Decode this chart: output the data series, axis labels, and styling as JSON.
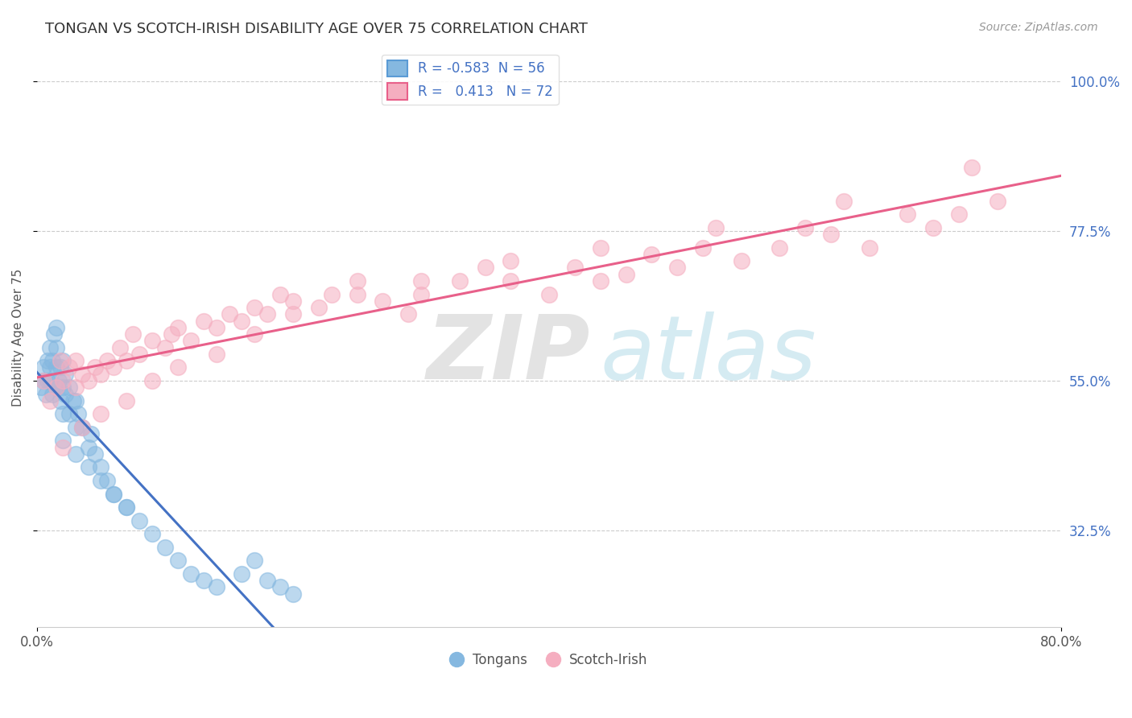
{
  "title": "TONGAN VS SCOTCH-IRISH DISABILITY AGE OVER 75 CORRELATION CHART",
  "source": "Source: ZipAtlas.com",
  "ylabel": "Disability Age Over 75",
  "xlim": [
    0.0,
    80.0
  ],
  "ylim": [
    18.0,
    105.0
  ],
  "yticks": [
    32.5,
    55.0,
    77.5,
    100.0
  ],
  "xticks": [
    0.0,
    80.0
  ],
  "legend_R_tongan": "-0.583",
  "legend_N_tongan": "56",
  "legend_R_scotch": "0.413",
  "legend_N_scotch": "72",
  "color_tongan": "#85b8e0",
  "color_scotch": "#f5aec0",
  "color_tongan_line": "#4472c4",
  "color_scotch_line": "#e8608a",
  "background_color": "#ffffff",
  "tongan_x": [
    0.3,
    0.5,
    0.5,
    0.7,
    0.8,
    0.8,
    1.0,
    1.0,
    1.0,
    1.2,
    1.2,
    1.3,
    1.5,
    1.5,
    1.5,
    1.5,
    1.7,
    1.8,
    1.8,
    2.0,
    2.0,
    2.0,
    2.2,
    2.2,
    2.5,
    2.5,
    2.8,
    3.0,
    3.0,
    3.2,
    3.5,
    4.0,
    4.2,
    4.5,
    5.0,
    5.5,
    6.0,
    7.0,
    8.0,
    9.0,
    10.0,
    11.0,
    12.0,
    13.0,
    14.0,
    16.0,
    17.0,
    18.0,
    19.0,
    20.0,
    2.0,
    3.0,
    4.0,
    5.0,
    6.0,
    7.0
  ],
  "tongan_y": [
    54.0,
    55.0,
    57.0,
    53.0,
    55.0,
    58.0,
    55.0,
    57.0,
    60.0,
    53.0,
    58.0,
    62.0,
    54.0,
    57.0,
    60.0,
    63.0,
    55.0,
    52.0,
    57.0,
    50.0,
    54.0,
    58.0,
    53.0,
    56.0,
    50.0,
    54.0,
    52.0,
    48.0,
    52.0,
    50.0,
    48.0,
    45.0,
    47.0,
    44.0,
    42.0,
    40.0,
    38.0,
    36.0,
    34.0,
    32.0,
    30.0,
    28.0,
    26.0,
    25.0,
    24.0,
    26.0,
    28.0,
    25.0,
    24.0,
    23.0,
    46.0,
    44.0,
    42.0,
    40.0,
    38.0,
    36.0
  ],
  "scotch_x": [
    0.5,
    1.0,
    1.5,
    1.8,
    2.0,
    2.5,
    3.0,
    3.0,
    3.5,
    4.0,
    4.5,
    5.0,
    5.5,
    6.0,
    6.5,
    7.0,
    7.5,
    8.0,
    9.0,
    10.0,
    10.5,
    11.0,
    12.0,
    13.0,
    14.0,
    15.0,
    16.0,
    17.0,
    18.0,
    19.0,
    20.0,
    22.0,
    23.0,
    25.0,
    27.0,
    29.0,
    30.0,
    33.0,
    35.0,
    37.0,
    40.0,
    42.0,
    44.0,
    46.0,
    48.0,
    50.0,
    52.0,
    55.0,
    58.0,
    60.0,
    62.0,
    65.0,
    68.0,
    70.0,
    72.0,
    75.0,
    2.0,
    3.5,
    5.0,
    7.0,
    9.0,
    11.0,
    14.0,
    17.0,
    20.0,
    25.0,
    30.0,
    37.0,
    44.0,
    53.0,
    63.0,
    73.0
  ],
  "scotch_y": [
    55.0,
    52.0,
    54.0,
    58.0,
    55.0,
    57.0,
    54.0,
    58.0,
    56.0,
    55.0,
    57.0,
    56.0,
    58.0,
    57.0,
    60.0,
    58.0,
    62.0,
    59.0,
    61.0,
    60.0,
    62.0,
    63.0,
    61.0,
    64.0,
    63.0,
    65.0,
    64.0,
    66.0,
    65.0,
    68.0,
    67.0,
    66.0,
    68.0,
    70.0,
    67.0,
    65.0,
    68.0,
    70.0,
    72.0,
    70.0,
    68.0,
    72.0,
    70.0,
    71.0,
    74.0,
    72.0,
    75.0,
    73.0,
    75.0,
    78.0,
    77.0,
    75.0,
    80.0,
    78.0,
    80.0,
    82.0,
    45.0,
    48.0,
    50.0,
    52.0,
    55.0,
    57.0,
    59.0,
    62.0,
    65.0,
    68.0,
    70.0,
    73.0,
    75.0,
    78.0,
    82.0,
    87.0
  ]
}
